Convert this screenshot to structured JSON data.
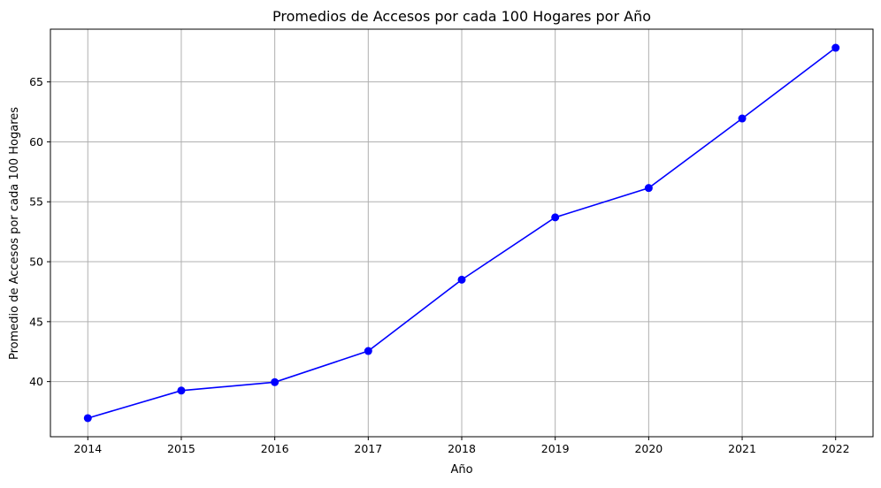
{
  "chart_data": {
    "type": "line",
    "title": "Promedios de Accesos por cada 100 Hogares por Año",
    "xlabel": "Año",
    "ylabel": "Promedio de Accesos por cada 100 Hogares",
    "x": [
      2014,
      2015,
      2016,
      2017,
      2018,
      2019,
      2020,
      2021,
      2022
    ],
    "series": [
      {
        "values": [
          36.95,
          39.25,
          39.95,
          42.55,
          48.5,
          53.7,
          56.15,
          61.95,
          67.85
        ],
        "color": "#0000ff",
        "marker": "circle"
      }
    ],
    "xticks": [
      "2014",
      "2015",
      "2016",
      "2017",
      "2018",
      "2019",
      "2020",
      "2021",
      "2022"
    ],
    "yticks": [
      40,
      45,
      50,
      55,
      60,
      65
    ],
    "xlim": [
      2013.6,
      2022.4
    ],
    "ylim": [
      35.4,
      69.4
    ],
    "grid": true,
    "grid_color": "#b0b0b0"
  }
}
